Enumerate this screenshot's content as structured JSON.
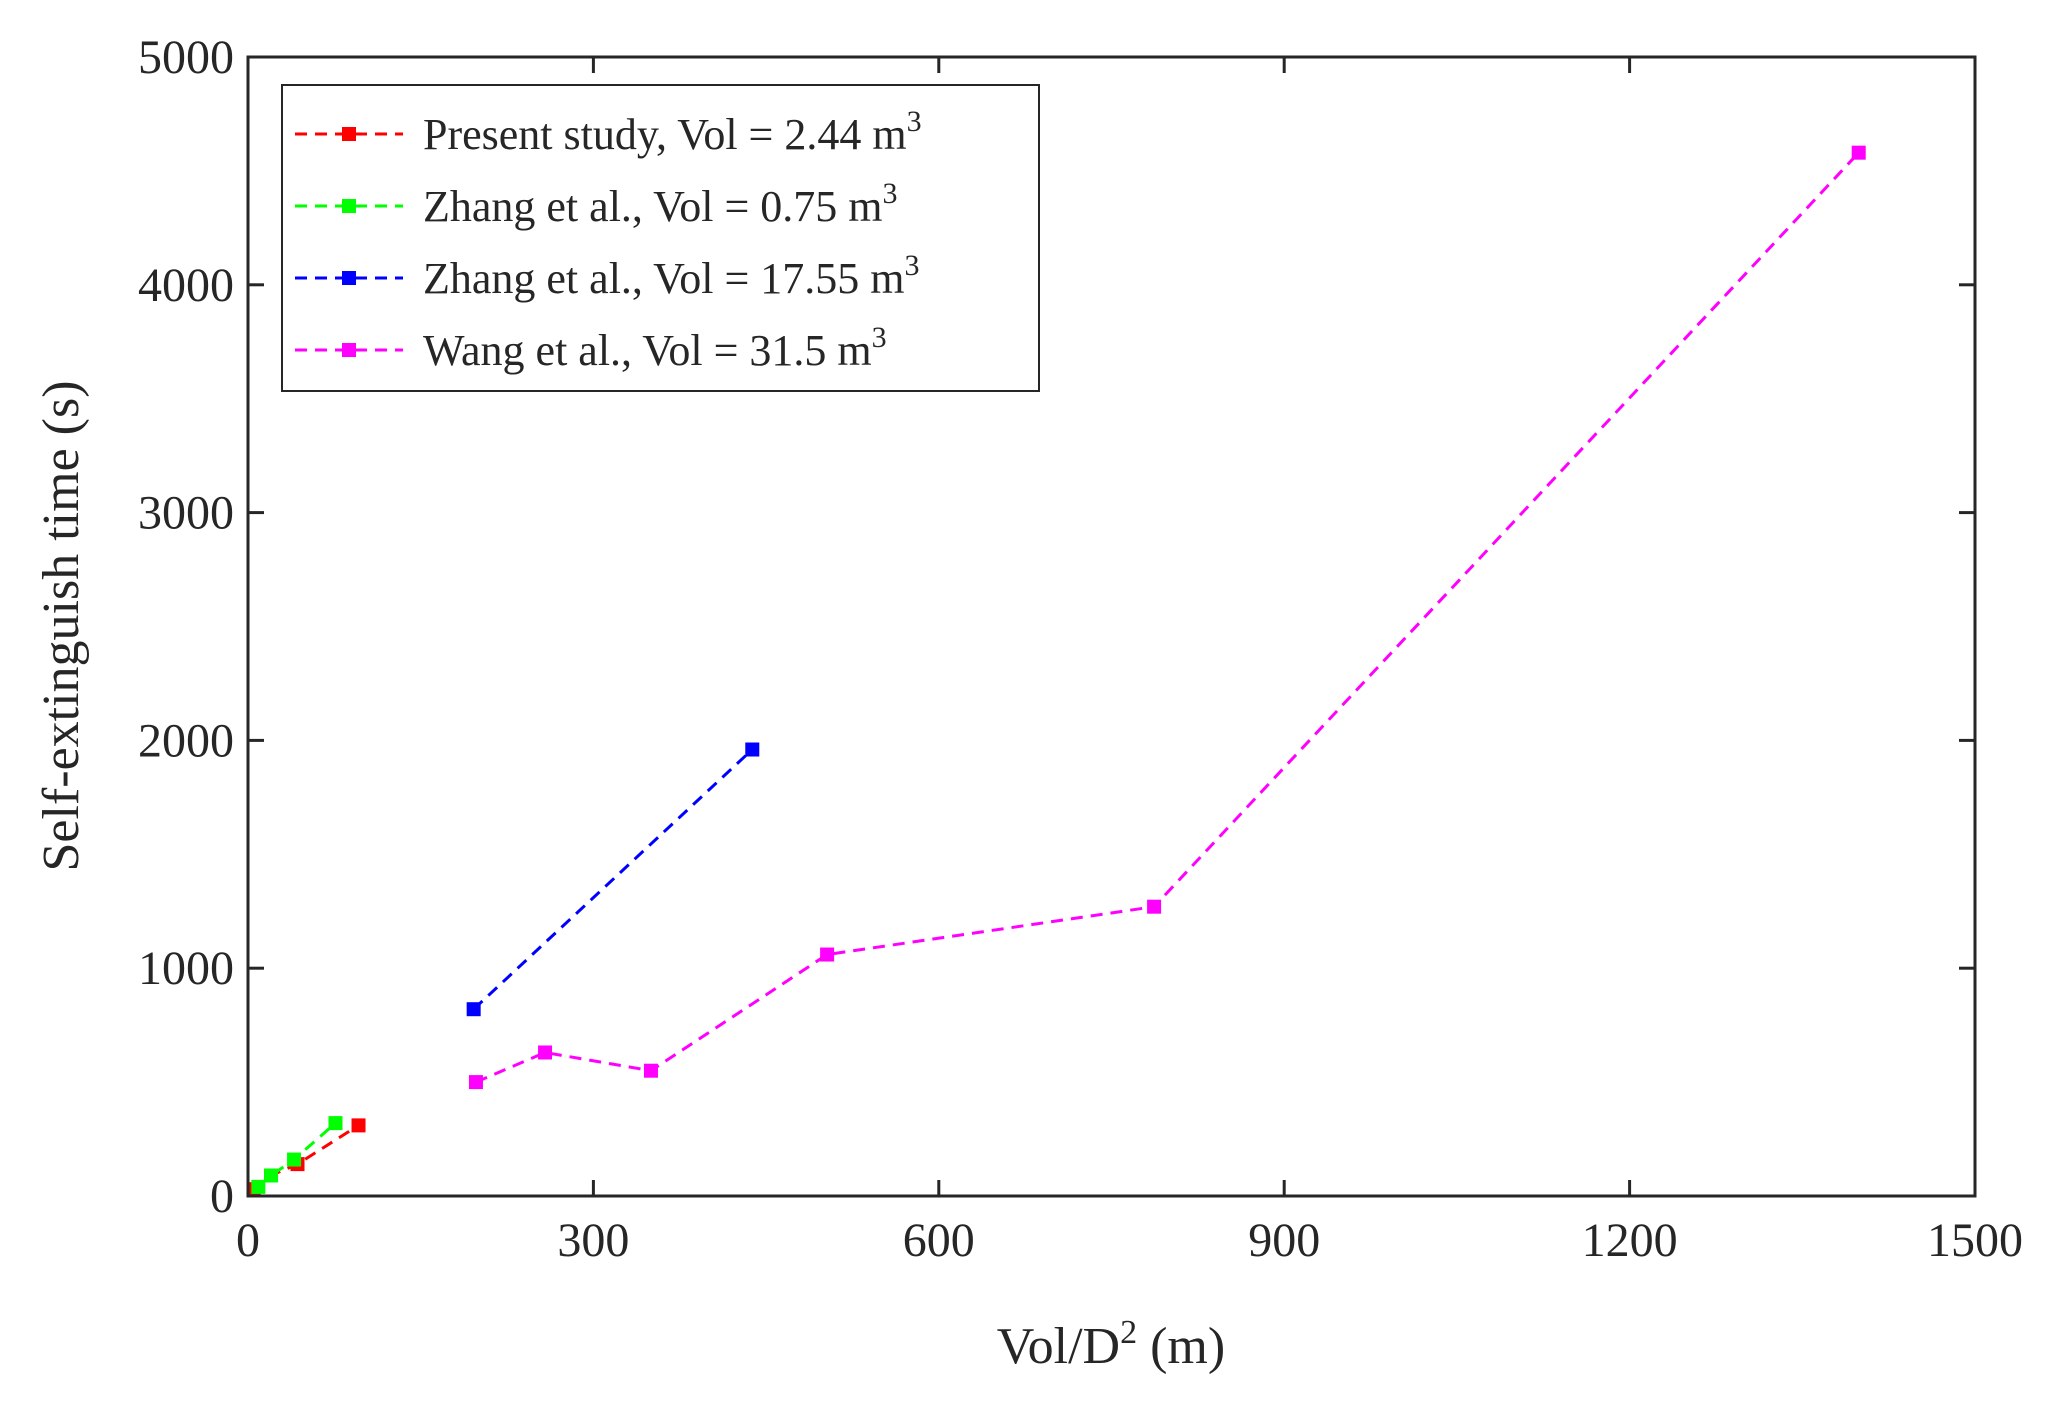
{
  "chart_data": {
    "type": "line",
    "title": "",
    "xlabel": "Vol/D",
    "xlabel_sup": "2",
    "xlabel_unit": " (m)",
    "ylabel": "Self-extinguish time (s)",
    "xlim": [
      0,
      1500
    ],
    "ylim": [
      0,
      5000
    ],
    "xticks": [
      0,
      300,
      600,
      900,
      1200,
      1500
    ],
    "yticks": [
      0,
      1000,
      2000,
      3000,
      4000,
      5000
    ],
    "xtick_labels": [
      "0",
      "300",
      "600",
      "900",
      "1200",
      "1500"
    ],
    "ytick_labels": [
      "0",
      "1000",
      "2000",
      "3000",
      "4000",
      "5000"
    ],
    "grid": false,
    "legend_position": "top-left",
    "series": [
      {
        "name": "Present study, Vol = 2.44 m",
        "sup": "3",
        "color": "#ff0000",
        "x": [
          5,
          20,
          43,
          96
        ],
        "y": [
          30,
          90,
          140,
          310
        ]
      },
      {
        "name": "Zhang et al., Vol = 0.75 m",
        "sup": "3",
        "color": "#00ff00",
        "x": [
          9,
          20,
          40,
          76
        ],
        "y": [
          40,
          90,
          160,
          320
        ]
      },
      {
        "name": "Zhang et al., Vol = 17.55 m",
        "sup": "3",
        "color": "#0000ff",
        "x": [
          196,
          438
        ],
        "y": [
          820,
          1960
        ]
      },
      {
        "name": "Wang et al., Vol = 31.5 m",
        "sup": "3",
        "color": "#ff00ff",
        "x": [
          198,
          258,
          350,
          503,
          787,
          1399
        ],
        "y": [
          500,
          630,
          550,
          1060,
          1270,
          4580
        ]
      }
    ]
  }
}
